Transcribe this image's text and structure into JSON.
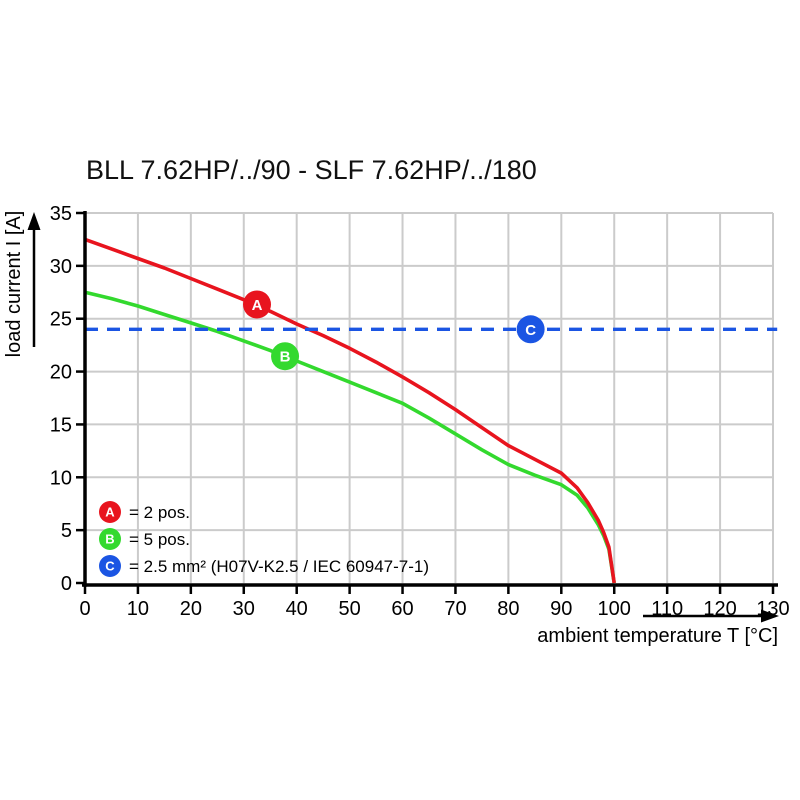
{
  "title": "BLL 7.62HP/../90 - SLF 7.62HP/../180",
  "colors": {
    "red": "#e8141e",
    "green": "#33d92e",
    "blue": "#1b55e3",
    "grid": "#cbcbcb",
    "axis": "#000000",
    "background": "#ffffff",
    "marker_letter": "#ffffff"
  },
  "chart_data": {
    "type": "line",
    "title": "BLL 7.62HP/../90 - SLF 7.62HP/../180",
    "xlabel": "ambient temperature T [°C]",
    "ylabel": "load current I [A]",
    "xlim": [
      0,
      130
    ],
    "ylim": [
      0,
      35
    ],
    "x_ticks": [
      0,
      10,
      20,
      30,
      40,
      50,
      60,
      70,
      80,
      90,
      100,
      110,
      120,
      130
    ],
    "y_ticks": [
      0,
      5,
      10,
      15,
      20,
      25,
      30,
      35
    ],
    "grid": true,
    "legend_position": "bottom-left-inside",
    "series": [
      {
        "name": "A = 2 pos.",
        "color": "#e8141e",
        "style": "solid",
        "points": [
          [
            0,
            32.5
          ],
          [
            5,
            31.6
          ],
          [
            10,
            30.7
          ],
          [
            15,
            29.8
          ],
          [
            20,
            28.8
          ],
          [
            25,
            27.8
          ],
          [
            30,
            26.8
          ],
          [
            35,
            25.7
          ],
          [
            40,
            24.5
          ],
          [
            45,
            23.4
          ],
          [
            50,
            22.2
          ],
          [
            55,
            20.9
          ],
          [
            60,
            19.5
          ],
          [
            65,
            18.0
          ],
          [
            70,
            16.4
          ],
          [
            75,
            14.7
          ],
          [
            80,
            13.0
          ],
          [
            85,
            11.7
          ],
          [
            90,
            10.4
          ],
          [
            93,
            9.0
          ],
          [
            95,
            7.6
          ],
          [
            97,
            5.9
          ],
          [
            98,
            4.8
          ],
          [
            99,
            3.4
          ],
          [
            100,
            0
          ]
        ]
      },
      {
        "name": "B = 5 pos.",
        "color": "#33d92e",
        "style": "solid",
        "points": [
          [
            0,
            27.5
          ],
          [
            5,
            26.9
          ],
          [
            10,
            26.2
          ],
          [
            15,
            25.4
          ],
          [
            20,
            24.6
          ],
          [
            25,
            23.8
          ],
          [
            30,
            22.9
          ],
          [
            35,
            22.0
          ],
          [
            40,
            21.0
          ],
          [
            45,
            20.0
          ],
          [
            50,
            19.0
          ],
          [
            55,
            18.0
          ],
          [
            60,
            17.0
          ],
          [
            65,
            15.6
          ],
          [
            70,
            14.1
          ],
          [
            75,
            12.6
          ],
          [
            80,
            11.2
          ],
          [
            85,
            10.2
          ],
          [
            90,
            9.3
          ],
          [
            93,
            8.3
          ],
          [
            95,
            7.1
          ],
          [
            97,
            5.5
          ],
          [
            98,
            4.5
          ],
          [
            99,
            3.2
          ],
          [
            100,
            0
          ]
        ]
      },
      {
        "name": "C = 2.5 mm² (H07V-K2.5 / IEC 60947-7-1)",
        "color": "#1b55e3",
        "style": "dashed",
        "points": [
          [
            0,
            24
          ],
          [
            130.8,
            24
          ]
        ]
      }
    ],
    "markers": [
      {
        "label": "A",
        "x": 32.5,
        "y": 26.35,
        "color": "#e8141e"
      },
      {
        "label": "B",
        "x": 37.8,
        "y": 21.45,
        "color": "#33d92e"
      },
      {
        "label": "C",
        "x": 84.2,
        "y": 24.0,
        "color": "#1b55e3"
      }
    ],
    "legend": [
      {
        "letter": "A",
        "color": "#e8141e",
        "text": "= 2 pos."
      },
      {
        "letter": "B",
        "color": "#33d92e",
        "text": "= 5 pos."
      },
      {
        "letter": "C",
        "color": "#1b55e3",
        "text": "= 2.5 mm² (H07V-K2.5 / IEC 60947-7-1)"
      }
    ]
  }
}
